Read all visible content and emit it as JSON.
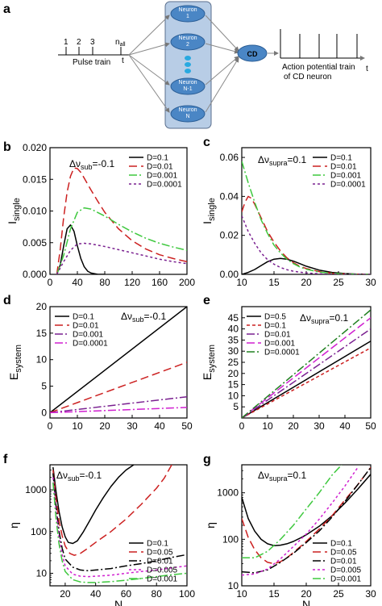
{
  "panels": {
    "a": "a",
    "b": "b",
    "c": "c",
    "d": "d",
    "e": "e",
    "f": "f",
    "g": "g"
  },
  "schematic": {
    "pulse_numbers": [
      "1",
      "2",
      "3"
    ],
    "n_all": "n",
    "n_all_sub": "all",
    "t": "t",
    "pulse_train": "Pulse train",
    "neurons": [
      {
        "line1": "Neuron",
        "line2": "1"
      },
      {
        "line1": "Neuron",
        "line2": "2"
      },
      {
        "line1": "Neuron",
        "line2": "N-1"
      },
      {
        "line1": "Neuron",
        "line2": "N"
      }
    ],
    "cd": "CD",
    "output_label_1": "Action potential train",
    "output_label_2": "of CD neuron",
    "output_t": "t",
    "colors": {
      "panel": "#b8cde6",
      "neuron": "#4a86c5",
      "dots": "#29a9e0",
      "arrow": "#8a8a8a"
    }
  },
  "chart_data": [
    {
      "id": "b",
      "type": "line",
      "ylabel": "I",
      "ylabel_sub": "single",
      "xlim": [
        0,
        200
      ],
      "ylim": [
        0,
        0.02
      ],
      "xticks": [
        0,
        40,
        80,
        120,
        160,
        200
      ],
      "xtick_labels": [
        "0",
        "40",
        "80",
        "120",
        "160",
        "200"
      ],
      "yticks": [
        0,
        0.005,
        0.01,
        0.015,
        0.02
      ],
      "ytick_labels": [
        "0.000",
        "0.005",
        "0.010",
        "0.015",
        "0.020"
      ],
      "annotation": {
        "pre": "Δν",
        "sub": "sub",
        "post": "=-0.1"
      },
      "legend_position": "top-right",
      "series": [
        {
          "name": "D=0.1",
          "color": "#000000",
          "dash": "",
          "x": [
            10,
            15,
            20,
            25,
            30,
            35,
            40,
            45,
            50,
            55,
            60,
            70,
            80
          ],
          "y": [
            0,
            0.0015,
            0.0045,
            0.0072,
            0.0078,
            0.0068,
            0.0045,
            0.0025,
            0.0012,
            0.0005,
            0.0002,
            0,
            0
          ]
        },
        {
          "name": "D=0.01",
          "color": "#cc2020",
          "dash": "10,5",
          "x": [
            10,
            15,
            20,
            25,
            30,
            35,
            40,
            45,
            50,
            60,
            70,
            80,
            100,
            120,
            140,
            160,
            180,
            200
          ],
          "y": [
            0,
            0.004,
            0.009,
            0.013,
            0.0155,
            0.0168,
            0.0167,
            0.0161,
            0.0152,
            0.0133,
            0.0115,
            0.0098,
            0.0072,
            0.0053,
            0.004,
            0.0031,
            0.0025,
            0.002
          ]
        },
        {
          "name": "D=0.001",
          "color": "#3ec83e",
          "dash": "10,3,2,3",
          "x": [
            10,
            20,
            30,
            40,
            50,
            60,
            80,
            100,
            120,
            140,
            160,
            180,
            200
          ],
          "y": [
            0,
            0.003,
            0.0072,
            0.0098,
            0.0105,
            0.0103,
            0.0092,
            0.0079,
            0.0067,
            0.0057,
            0.0049,
            0.0043,
            0.0038
          ]
        },
        {
          "name": "D=0.0001",
          "color": "#7a2090",
          "dash": "3,3",
          "x": [
            10,
            20,
            30,
            40,
            50,
            60,
            80,
            100,
            120,
            140,
            160,
            180,
            200
          ],
          "y": [
            0,
            0.002,
            0.0038,
            0.0048,
            0.0049,
            0.0048,
            0.0044,
            0.0039,
            0.0034,
            0.0029,
            0.0024,
            0.002,
            0.0017
          ]
        }
      ]
    },
    {
      "id": "c",
      "type": "line",
      "ylabel": "I",
      "ylabel_sub": "single",
      "xlim": [
        10,
        30
      ],
      "ylim": [
        0,
        0.065
      ],
      "xticks": [
        10,
        15,
        20,
        25,
        30
      ],
      "xtick_labels": [
        "10",
        "15",
        "20",
        "25",
        "30"
      ],
      "yticks": [
        0,
        0.02,
        0.04,
        0.06
      ],
      "ytick_labels": [
        "0.00",
        "0.02",
        "0.04",
        "0.06"
      ],
      "annotation": {
        "pre": "Δν",
        "sub": "supra",
        "post": "=0.1"
      },
      "legend_position": "top-right",
      "series": [
        {
          "name": "D=0.1",
          "color": "#000000",
          "dash": "",
          "x": [
            10,
            11,
            12,
            13,
            14,
            15,
            16,
            17,
            18,
            19,
            20,
            22,
            24,
            26,
            28,
            30
          ],
          "y": [
            0,
            0.001,
            0.0025,
            0.0045,
            0.0065,
            0.0078,
            0.0082,
            0.0078,
            0.0068,
            0.0055,
            0.0042,
            0.0022,
            0.001,
            0.0004,
            0.0001,
            0
          ]
        },
        {
          "name": "D=0.01",
          "color": "#cc2020",
          "dash": "10,5",
          "x": [
            10,
            10.5,
            11,
            11.5,
            12,
            13,
            14,
            15,
            16,
            17,
            18,
            19,
            20,
            22,
            24,
            26,
            28,
            30
          ],
          "y": [
            0.032,
            0.037,
            0.04,
            0.039,
            0.036,
            0.029,
            0.022,
            0.0165,
            0.012,
            0.0085,
            0.006,
            0.0042,
            0.003,
            0.0014,
            0.0006,
            0.0002,
            0.0001,
            0
          ]
        },
        {
          "name": "D=0.001",
          "color": "#3ec83e",
          "dash": "10,3,2,3",
          "x": [
            10,
            11,
            12,
            13,
            14,
            15,
            16,
            17,
            18,
            19,
            20,
            22,
            24,
            26,
            28,
            30
          ],
          "y": [
            0.058,
            0.047,
            0.037,
            0.028,
            0.021,
            0.015,
            0.011,
            0.0078,
            0.0055,
            0.0038,
            0.0026,
            0.0012,
            0.0005,
            0.0002,
            0.0001,
            0
          ]
        },
        {
          "name": "D=0.0001",
          "color": "#7a2090",
          "dash": "3,3",
          "x": [
            10,
            11,
            12,
            13,
            14,
            15,
            16,
            17,
            18,
            19,
            20,
            22,
            24,
            26,
            28,
            30
          ],
          "y": [
            0.03,
            0.022,
            0.016,
            0.011,
            0.0075,
            0.0052,
            0.0035,
            0.0024,
            0.0016,
            0.0011,
            0.0007,
            0.0003,
            0.0001,
            0,
            0,
            0
          ]
        }
      ]
    },
    {
      "id": "d",
      "type": "line",
      "ylabel": "E",
      "ylabel_sub": "system",
      "xlim": [
        0,
        50
      ],
      "ylim": [
        -1,
        20
      ],
      "xticks": [
        0,
        10,
        20,
        30,
        40,
        50
      ],
      "xtick_labels": [
        "0",
        "10",
        "20",
        "30",
        "40",
        "50"
      ],
      "yticks": [
        0,
        5,
        10,
        15,
        20
      ],
      "ytick_labels": [
        "0",
        "5",
        "10",
        "15",
        "20"
      ],
      "annotation": {
        "pre": "Δν",
        "sub": "sub",
        "post": "=-0.1"
      },
      "legend_position": "top-left",
      "series": [
        {
          "name": "D=0.1",
          "color": "#000000",
          "dash": "",
          "x": [
            0,
            50
          ],
          "y": [
            0,
            20
          ]
        },
        {
          "name": "D=0.01",
          "color": "#cc2020",
          "dash": "10,5",
          "x": [
            0,
            50
          ],
          "y": [
            0,
            9.5
          ]
        },
        {
          "name": "D=0.001",
          "color": "#7a2090",
          "dash": "10,3,2,3",
          "x": [
            0,
            50
          ],
          "y": [
            0,
            3
          ]
        },
        {
          "name": "D=0.0001",
          "color": "#d020d0",
          "dash": "10,3,2,3",
          "x": [
            0,
            50
          ],
          "y": [
            0,
            1
          ]
        }
      ]
    },
    {
      "id": "e",
      "type": "line",
      "ylabel": "E",
      "ylabel_sub": "system",
      "xlim": [
        0,
        50
      ],
      "ylim": [
        0,
        50
      ],
      "xticks": [
        0,
        10,
        20,
        30,
        40,
        50
      ],
      "xtick_labels": [
        "0",
        "10",
        "20",
        "30",
        "40",
        "50"
      ],
      "yticks": [
        5,
        10,
        15,
        20,
        25,
        30,
        35,
        40,
        45
      ],
      "ytick_labels": [
        "5",
        "10",
        "15",
        "20",
        "25",
        "30",
        "35",
        "40",
        "45"
      ],
      "annotation": {
        "pre": "Δν",
        "sub": "supra",
        "post": "=0.1"
      },
      "legend_position": "top-left",
      "series": [
        {
          "name": "D=0.5",
          "color": "#000000",
          "dash": "",
          "x": [
            0,
            50
          ],
          "y": [
            0,
            34.5
          ]
        },
        {
          "name": "D=0.1",
          "color": "#cc2020",
          "dash": "4,3",
          "x": [
            0,
            50
          ],
          "y": [
            0,
            31.5
          ]
        },
        {
          "name": "D=0.01",
          "color": "#7a2090",
          "dash": "10,3,2,3",
          "x": [
            0,
            50
          ],
          "y": [
            0,
            40
          ]
        },
        {
          "name": "D=0.001",
          "color": "#d020d0",
          "dash": "10,4",
          "x": [
            0,
            50
          ],
          "y": [
            0,
            45
          ]
        },
        {
          "name": "D=0.0001",
          "color": "#208020",
          "dash": "10,3,2,3",
          "x": [
            0,
            50
          ],
          "y": [
            0,
            48.5
          ]
        }
      ]
    },
    {
      "id": "f",
      "type": "line",
      "ylabel": "η",
      "ylabel_sub": "",
      "xlabel": "N",
      "xlim": [
        10,
        100
      ],
      "ylim": [
        5,
        4000
      ],
      "yscale": "log",
      "xticks": [
        20,
        40,
        60,
        80,
        100
      ],
      "xtick_labels": [
        "20",
        "40",
        "60",
        "80",
        "100"
      ],
      "yticks": [
        10,
        100,
        1000
      ],
      "ytick_labels": [
        "10",
        "100",
        "1000"
      ],
      "annotation": {
        "pre": "Δν",
        "sub": "sub",
        "post": "=-0.1"
      },
      "legend_position": "bottom-right",
      "series": [
        {
          "name": "D=0.1",
          "color": "#000000",
          "dash": "",
          "x": [
            12,
            14,
            16,
            18,
            20,
            22,
            25,
            28,
            32,
            36,
            40,
            45,
            50,
            55,
            60,
            65
          ],
          "y": [
            3500,
            900,
            300,
            130,
            75,
            55,
            52,
            60,
            100,
            180,
            330,
            650,
            1200,
            2000,
            3000,
            4000
          ]
        },
        {
          "name": "D=0.05",
          "color": "#cc2020",
          "dash": "10,5",
          "x": [
            12,
            14,
            16,
            18,
            20,
            23,
            26,
            30,
            35,
            40,
            50,
            60,
            70,
            80,
            85,
            90
          ],
          "y": [
            3000,
            600,
            180,
            80,
            45,
            30,
            27,
            30,
            40,
            55,
            100,
            200,
            450,
            1100,
            1900,
            4000
          ]
        },
        {
          "name": "D=0.01",
          "color": "#000000",
          "dash": "10,3,2,3",
          "x": [
            12,
            14,
            16,
            18,
            20,
            25,
            30,
            35,
            40,
            50,
            60,
            70,
            80,
            90,
            100
          ],
          "y": [
            2500,
            400,
            100,
            40,
            22,
            14,
            12,
            11.5,
            12,
            13,
            15,
            17,
            20,
            24,
            28
          ]
        },
        {
          "name": "D=0.005",
          "color": "#d020d0",
          "dash": "3,3",
          "x": [
            12,
            14,
            16,
            18,
            20,
            25,
            30,
            35,
            40,
            50,
            60,
            70,
            80,
            90,
            100
          ],
          "y": [
            2000,
            300,
            70,
            28,
            15,
            9.5,
            8.5,
            8.3,
            8.5,
            9,
            10,
            11,
            12,
            13.5,
            15
          ]
        },
        {
          "name": "D=0.001",
          "color": "#3ec83e",
          "dash": "10,3,2,3",
          "x": [
            12,
            14,
            16,
            18,
            20,
            25,
            30,
            35,
            40,
            50,
            60,
            70,
            80,
            90,
            100
          ],
          "y": [
            1500,
            200,
            50,
            20,
            11,
            7,
            6.2,
            6,
            6,
            6.3,
            6.8,
            7.5,
            8.3,
            9.2,
            10
          ]
        }
      ]
    },
    {
      "id": "g",
      "type": "line",
      "ylabel": "η",
      "ylabel_sub": "",
      "xlabel": "N",
      "xlim": [
        10,
        30
      ],
      "ylim": [
        10,
        4000
      ],
      "yscale": "log",
      "xticks": [
        10,
        15,
        20,
        25,
        30
      ],
      "xtick_labels": [
        "10",
        "15",
        "20",
        "25",
        "30"
      ],
      "yticks": [
        10,
        100,
        1000
      ],
      "ytick_labels": [
        "10",
        "100",
        "1000"
      ],
      "annotation": {
        "pre": "Δν",
        "sub": "supra",
        "post": "=0.1"
      },
      "legend_position": "bottom-right",
      "series": [
        {
          "name": "D=0.1",
          "color": "#000000",
          "dash": "",
          "x": [
            10,
            11,
            12,
            13,
            14,
            15,
            16,
            17,
            18,
            19,
            20,
            22,
            24,
            26,
            28,
            30
          ],
          "y": [
            800,
            280,
            150,
            100,
            80,
            73,
            75,
            80,
            90,
            105,
            125,
            190,
            320,
            600,
            1200,
            2500
          ]
        },
        {
          "name": "D=0.05",
          "color": "#cc2020",
          "dash": "10,5",
          "x": [
            10,
            11,
            12,
            13,
            14,
            15,
            16,
            17,
            18,
            19,
            20,
            22,
            24,
            26,
            28,
            30
          ],
          "y": [
            280,
            110,
            60,
            40,
            32,
            30,
            33,
            40,
            52,
            68,
            90,
            165,
            320,
            700,
            1500,
            3500
          ]
        },
        {
          "name": "D=0.01",
          "color": "#000000",
          "dash": "10,3,2,3",
          "x": [
            10,
            12,
            14,
            16,
            18,
            20,
            22,
            24,
            26,
            28,
            30
          ],
          "y": [
            20,
            19,
            22,
            32,
            50,
            85,
            150,
            300,
            650,
            1500,
            3500
          ]
        },
        {
          "name": "D=0.005",
          "color": "#d020d0",
          "dash": "3,3",
          "x": [
            10,
            12,
            14,
            16,
            18,
            20,
            22,
            24,
            26,
            28
          ],
          "y": [
            17,
            18,
            23,
            38,
            70,
            130,
            270,
            600,
            1400,
            3500
          ]
        },
        {
          "name": "D=0.001",
          "color": "#3ec83e",
          "dash": "10,3,2,3",
          "x": [
            10,
            12,
            14,
            16,
            18,
            20,
            22,
            24,
            25.5
          ],
          "y": [
            40,
            40,
            55,
            100,
            200,
            450,
            1000,
            2400,
            4000
          ]
        }
      ]
    }
  ]
}
